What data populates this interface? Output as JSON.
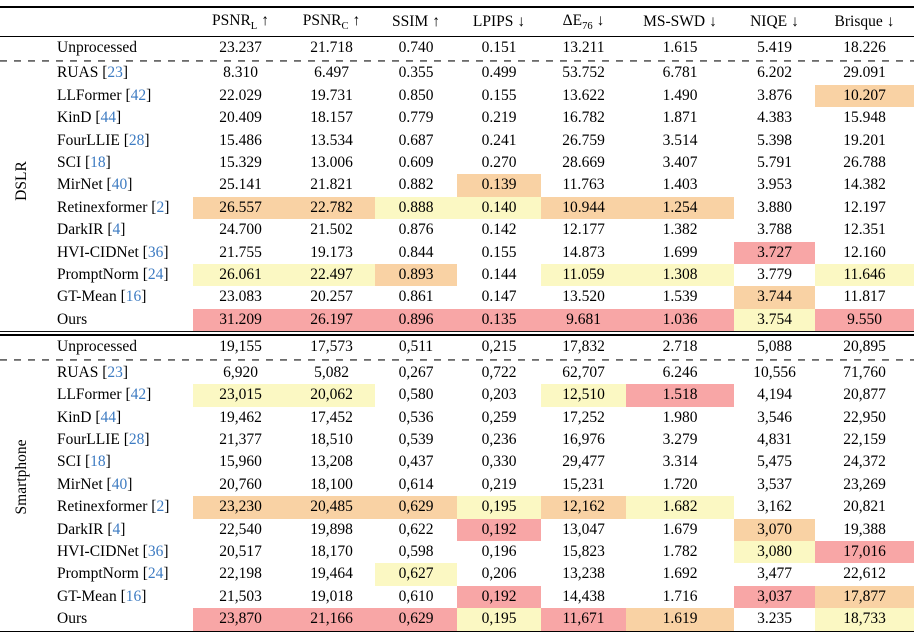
{
  "highlight_colors": {
    "best": "#f8a6a6",
    "second": "#f9d2a4",
    "third": "#fbf8c3"
  },
  "citation_color": "#3d7bc2",
  "table": {
    "metrics": [
      {
        "label": "PSNR",
        "sub": "L",
        "arrow": "↑"
      },
      {
        "label": "PSNR",
        "sub": "C",
        "arrow": "↑"
      },
      {
        "label": "SSIM",
        "sub": "",
        "arrow": "↑"
      },
      {
        "label": "LPIPS",
        "sub": "",
        "arrow": "↓"
      },
      {
        "label": "ΔE",
        "sub": "76",
        "arrow": "↓"
      },
      {
        "label": "MS-SWD",
        "sub": "",
        "arrow": "↓"
      },
      {
        "label": "NIQE",
        "sub": "",
        "arrow": "↓"
      },
      {
        "label": "Brisque",
        "sub": "",
        "arrow": "↓"
      }
    ],
    "sections": [
      {
        "name": "DSLR",
        "rows": [
          {
            "method": "Unprocessed",
            "cite": null,
            "values": [
              "23.237",
              "21.718",
              "0.740",
              "0.151",
              "13.211",
              "1.615",
              "5.419",
              "18.226"
            ],
            "hl": [
              "",
              "",
              "",
              "",
              "",
              "",
              "",
              ""
            ]
          },
          {
            "method": "RUAS",
            "cite": "23",
            "values": [
              "8.310",
              "6.497",
              "0.355",
              "0.499",
              "53.752",
              "6.781",
              "6.202",
              "29.091"
            ],
            "hl": [
              "",
              "",
              "",
              "",
              "",
              "",
              "",
              ""
            ]
          },
          {
            "method": "LLFormer",
            "cite": "42",
            "values": [
              "22.029",
              "19.731",
              "0.850",
              "0.155",
              "13.622",
              "1.490",
              "3.876",
              "10.207"
            ],
            "hl": [
              "",
              "",
              "",
              "",
              "",
              "",
              "",
              "o"
            ]
          },
          {
            "method": "KinD",
            "cite": "44",
            "values": [
              "20.409",
              "18.157",
              "0.779",
              "0.219",
              "16.782",
              "1.871",
              "4.383",
              "15.948"
            ],
            "hl": [
              "",
              "",
              "",
              "",
              "",
              "",
              "",
              ""
            ]
          },
          {
            "method": "FourLLIE",
            "cite": "28",
            "values": [
              "15.486",
              "13.534",
              "0.687",
              "0.241",
              "26.759",
              "3.514",
              "5.398",
              "19.201"
            ],
            "hl": [
              "",
              "",
              "",
              "",
              "",
              "",
              "",
              ""
            ]
          },
          {
            "method": "SCI",
            "cite": "18",
            "values": [
              "15.329",
              "13.006",
              "0.609",
              "0.270",
              "28.669",
              "3.407",
              "5.791",
              "26.788"
            ],
            "hl": [
              "",
              "",
              "",
              "",
              "",
              "",
              "",
              ""
            ]
          },
          {
            "method": "MirNet",
            "cite": "40",
            "values": [
              "25.141",
              "21.821",
              "0.882",
              "0.139",
              "11.763",
              "1.403",
              "3.953",
              "14.382"
            ],
            "hl": [
              "",
              "",
              "",
              "o",
              "",
              "",
              "",
              ""
            ]
          },
          {
            "method": "Retinexformer",
            "cite": "2",
            "values": [
              "26.557",
              "22.782",
              "0.888",
              "0.140",
              "10.944",
              "1.254",
              "3.880",
              "12.197"
            ],
            "hl": [
              "o",
              "o",
              "y",
              "y",
              "o",
              "o",
              "",
              ""
            ]
          },
          {
            "method": "DarkIR",
            "cite": "4",
            "values": [
              "24.700",
              "21.502",
              "0.876",
              "0.142",
              "12.177",
              "1.382",
              "3.788",
              "12.351"
            ],
            "hl": [
              "",
              "",
              "",
              "",
              "",
              "",
              "",
              ""
            ]
          },
          {
            "method": "HVI-CIDNet",
            "cite": "36",
            "values": [
              "21.755",
              "19.173",
              "0.844",
              "0.155",
              "14.873",
              "1.699",
              "3.727",
              "12.160"
            ],
            "hl": [
              "",
              "",
              "",
              "",
              "",
              "",
              "r",
              ""
            ]
          },
          {
            "method": "PromptNorm",
            "cite": "24",
            "values": [
              "26.061",
              "22.497",
              "0.893",
              "0.144",
              "11.059",
              "1.308",
              "3.779",
              "11.646"
            ],
            "hl": [
              "y",
              "y",
              "o",
              "",
              "y",
              "y",
              "",
              "y"
            ]
          },
          {
            "method": "GT-Mean",
            "cite": "16",
            "values": [
              "23.083",
              "20.257",
              "0.861",
              "0.147",
              "13.520",
              "1.539",
              "3.744",
              "11.817"
            ],
            "hl": [
              "",
              "",
              "",
              "",
              "",
              "",
              "o",
              ""
            ]
          },
          {
            "method": "Ours",
            "cite": null,
            "values": [
              "31.209",
              "26.197",
              "0.896",
              "0.135",
              "9.681",
              "1.036",
              "3.754",
              "9.550"
            ],
            "hl": [
              "r",
              "r",
              "r",
              "r",
              "r",
              "r",
              "y",
              "r"
            ]
          }
        ]
      },
      {
        "name": "Smartphone",
        "rows": [
          {
            "method": "Unprocessed",
            "cite": null,
            "values": [
              "19,155",
              "17,573",
              "0,511",
              "0,215",
              "17,832",
              "2.718",
              "5,088",
              "20,895"
            ],
            "hl": [
              "",
              "",
              "",
              "",
              "",
              "",
              "",
              ""
            ]
          },
          {
            "method": "RUAS",
            "cite": "23",
            "values": [
              "6,920",
              "5,082",
              "0,267",
              "0,722",
              "62,707",
              "6.246",
              "10,556",
              "71,760"
            ],
            "hl": [
              "",
              "",
              "",
              "",
              "",
              "",
              "",
              ""
            ]
          },
          {
            "method": "LLFormer",
            "cite": "42",
            "values": [
              "23,015",
              "20,062",
              "0,580",
              "0,203",
              "12,510",
              "1.518",
              "4,194",
              "20,877"
            ],
            "hl": [
              "y",
              "y",
              "",
              "",
              "y",
              "r",
              "",
              ""
            ]
          },
          {
            "method": "KinD",
            "cite": "44",
            "values": [
              "19,462",
              "17,452",
              "0,536",
              "0,259",
              "17,252",
              "1.980",
              "3,546",
              "22,950"
            ],
            "hl": [
              "",
              "",
              "",
              "",
              "",
              "",
              "",
              ""
            ]
          },
          {
            "method": "FourLLIE",
            "cite": "28",
            "values": [
              "21,377",
              "18,510",
              "0,539",
              "0,236",
              "16,976",
              "3.279",
              "4,831",
              "22,159"
            ],
            "hl": [
              "",
              "",
              "",
              "",
              "",
              "",
              "",
              ""
            ]
          },
          {
            "method": "SCI",
            "cite": "18",
            "values": [
              "15,960",
              "13,208",
              "0,437",
              "0,330",
              "29,477",
              "3.314",
              "5,475",
              "24,372"
            ],
            "hl": [
              "",
              "",
              "",
              "",
              "",
              "",
              "",
              ""
            ]
          },
          {
            "method": "MirNet",
            "cite": "40",
            "values": [
              "20,760",
              "18,100",
              "0,614",
              "0,219",
              "15,231",
              "1.720",
              "3,537",
              "23,269"
            ],
            "hl": [
              "",
              "",
              "",
              "",
              "",
              "",
              "",
              ""
            ]
          },
          {
            "method": "Retinexformer",
            "cite": "2",
            "values": [
              "23,230",
              "20,485",
              "0,629",
              "0,195",
              "12,162",
              "1.682",
              "3,162",
              "20,821"
            ],
            "hl": [
              "o",
              "o",
              "o",
              "y",
              "o",
              "y",
              "",
              ""
            ]
          },
          {
            "method": "DarkIR",
            "cite": "4",
            "values": [
              "22,540",
              "19,898",
              "0,622",
              "0,192",
              "13,047",
              "1.679",
              "3,070",
              "19,388"
            ],
            "hl": [
              "",
              "",
              "",
              "r",
              "",
              "",
              "o",
              ""
            ]
          },
          {
            "method": "HVI-CIDNet",
            "cite": "36",
            "values": [
              "20,517",
              "18,170",
              "0,598",
              "0,196",
              "15,823",
              "1.782",
              "3,080",
              "17,016"
            ],
            "hl": [
              "",
              "",
              "",
              "",
              "",
              "",
              "y",
              "r"
            ]
          },
          {
            "method": "PromptNorm",
            "cite": "24",
            "values": [
              "22,198",
              "19,464",
              "0,627",
              "0,206",
              "13,238",
              "1.692",
              "3,477",
              "22,612"
            ],
            "hl": [
              "",
              "",
              "y",
              "",
              "",
              "",
              "",
              ""
            ]
          },
          {
            "method": "GT-Mean",
            "cite": "16",
            "values": [
              "21,503",
              "19,018",
              "0,610",
              "0,192",
              "14,438",
              "1.716",
              "3,037",
              "17,877"
            ],
            "hl": [
              "",
              "",
              "",
              "r",
              "",
              "",
              "r",
              "o"
            ]
          },
          {
            "method": "Ours",
            "cite": null,
            "values": [
              "23,870",
              "21,166",
              "0,629",
              "0,195",
              "11,671",
              "1.619",
              "3.235",
              "18,733"
            ],
            "hl": [
              "r",
              "r",
              "r",
              "y",
              "r",
              "o",
              "",
              "y"
            ]
          }
        ]
      }
    ]
  }
}
